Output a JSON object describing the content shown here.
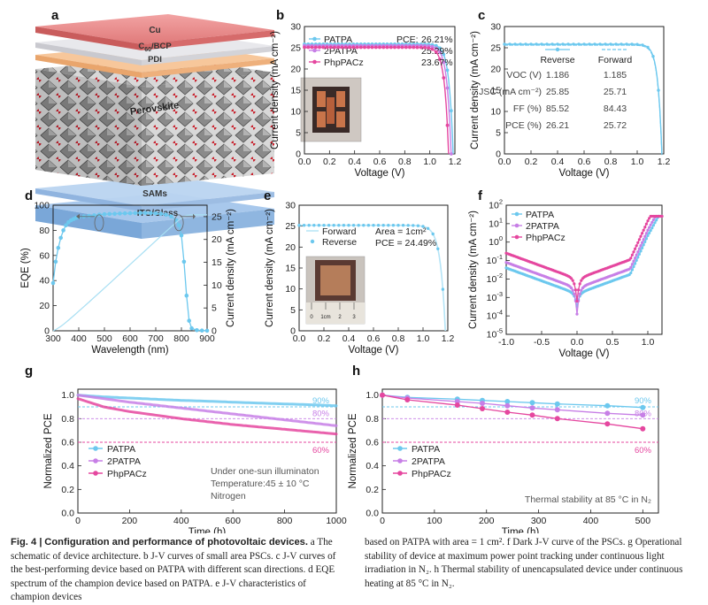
{
  "colors": {
    "blue": "#6cc8ee",
    "purple": "#c77fe6",
    "pink": "#e5479f",
    "grid": "#555555"
  },
  "panel_a": {
    "letter": "a",
    "layers": [
      "Cu",
      "C60/BCP",
      "PDI",
      "Perovskite",
      "SAMs",
      "ITO/Glass"
    ],
    "c60_base": "C",
    "c60_sub": "60",
    "c60_rest": "/BCP"
  },
  "chart_data": [
    {
      "id": "b",
      "type": "line",
      "letter": "b",
      "xlabel": "Voltage (V)",
      "ylabel": "Current density (mA cm⁻²)",
      "xlim": [
        0.0,
        1.2
      ],
      "ylim": [
        0,
        30
      ],
      "xticks": [
        0.0,
        0.2,
        0.4,
        0.6,
        0.8,
        1.0,
        1.2
      ],
      "yticks": [
        0,
        5,
        10,
        15,
        20,
        25,
        30
      ],
      "legend_header": "PCE:",
      "series": [
        {
          "name": "PATPA",
          "pce": "26.21%",
          "color": "#6cc8ee",
          "jsc": 25.85,
          "voc": 1.186
        },
        {
          "name": "2PATPA",
          "pce": "25.29%",
          "color": "#c77fe6",
          "jsc": 25.5,
          "voc": 1.17
        },
        {
          "name": "PhpPACz",
          "pce": "23.67%",
          "color": "#e5479f",
          "jsc": 25.1,
          "voc": 1.15
        }
      ],
      "inset": "photo of small-area devices"
    },
    {
      "id": "c",
      "type": "line",
      "letter": "c",
      "xlabel": "Voltage (V)",
      "ylabel": "Current density (mA cm⁻²)",
      "xlim": [
        0.0,
        1.2
      ],
      "ylim": [
        0,
        30
      ],
      "xticks": [
        0.0,
        0.2,
        0.4,
        0.6,
        0.8,
        1.0,
        1.2
      ],
      "yticks": [
        0,
        5,
        10,
        15,
        20,
        25,
        30
      ],
      "legend": [
        "Reverse",
        "Forward"
      ],
      "table": {
        "header": [
          "",
          "Reverse",
          "Forward"
        ],
        "rows": [
          [
            "VOC (V)",
            "1.186",
            "1.185"
          ],
          [
            "JSC (mA cm⁻²)",
            "25.85",
            "25.71"
          ],
          [
            "FF (%)",
            "85.52",
            "84.43"
          ],
          [
            "PCE (%)",
            "26.21",
            "25.72"
          ]
        ]
      }
    },
    {
      "id": "d",
      "type": "line",
      "letter": "d",
      "xlabel": "Wavelength (nm)",
      "ylabel": "EQE (%)",
      "y2label": "Current density (mA cm⁻²)",
      "xlim": [
        300,
        900
      ],
      "ylim": [
        0,
        100
      ],
      "y2lim": [
        0,
        27.5
      ],
      "xticks": [
        300,
        400,
        500,
        600,
        700,
        800,
        900
      ],
      "yticks": [
        0,
        20,
        40,
        60,
        80,
        100
      ],
      "y2ticks": [
        0,
        5,
        10,
        15,
        20,
        25
      ],
      "eqe": {
        "x": [
          300,
          310,
          320,
          330,
          340,
          350,
          360,
          370,
          380,
          390,
          400,
          420,
          440,
          460,
          480,
          500,
          520,
          540,
          560,
          580,
          600,
          620,
          640,
          660,
          680,
          700,
          720,
          740,
          760,
          780,
          790,
          800,
          810,
          820,
          830,
          840,
          860,
          880,
          900
        ],
        "y": [
          38,
          55,
          66,
          74,
          80,
          84,
          86.5,
          88,
          89,
          90,
          90.5,
          91,
          91.5,
          92,
          92.5,
          92.8,
          93,
          93.2,
          93.4,
          93.5,
          93.6,
          93.7,
          93.8,
          93.8,
          93.7,
          93.5,
          93.2,
          92.5,
          91,
          88,
          84,
          76,
          55,
          28,
          8,
          2,
          0.5,
          0.2,
          0.1
        ]
      },
      "integrated_jsc_end": 25.4
    },
    {
      "id": "e",
      "type": "line",
      "letter": "e",
      "xlabel": "Voltage (V)",
      "ylabel": "Current density (mA cm⁻²)",
      "xlim": [
        0.0,
        1.2
      ],
      "ylim": [
        0,
        30
      ],
      "xticks": [
        0.0,
        0.2,
        0.4,
        0.6,
        0.8,
        1.0,
        1.2
      ],
      "yticks": [
        0,
        5,
        10,
        15,
        20,
        25,
        30
      ],
      "legend": [
        "Forward",
        "Reverse"
      ],
      "annotations": [
        "Area = 1cm²",
        "PCE = 24.49%"
      ],
      "jsc": 25.2,
      "voc": 1.18,
      "inset": "photo of 1 cm² device on ruler",
      "ruler_labels": [
        "0",
        "1cm",
        "2",
        "3"
      ]
    },
    {
      "id": "f",
      "type": "line",
      "letter": "f",
      "yscale": "log",
      "xlabel": "Voltage (V)",
      "ylabel": "Current density (mA cm⁻²)",
      "xlim": [
        -1.0,
        1.2
      ],
      "ylim_exp": [
        -5,
        2
      ],
      "xticks": [
        -1.0,
        -0.5,
        0.0,
        0.5,
        1.0
      ],
      "ytick_exps": [
        -5,
        -4,
        -3,
        -2,
        -1,
        0,
        1,
        2
      ],
      "series": [
        {
          "name": "PATPA",
          "color": "#6cc8ee",
          "leak_exp": -1.4,
          "min_exp": -3.5
        },
        {
          "name": "2PATPA",
          "color": "#c77fe6",
          "leak_exp": -1.1,
          "min_exp": -3.9
        },
        {
          "name": "PhpPACz",
          "color": "#e5479f",
          "leak_exp": -0.6,
          "min_exp": -3.2
        }
      ]
    },
    {
      "id": "g",
      "type": "line",
      "letter": "g",
      "xlabel": "Time (h)",
      "ylabel": "Normalized PCE",
      "xlim": [
        0,
        1000
      ],
      "ylim": [
        0,
        1.05
      ],
      "xticks": [
        0,
        200,
        400,
        600,
        800,
        1000
      ],
      "yticks": [
        0.0,
        0.2,
        0.4,
        0.6,
        0.8,
        1.0
      ],
      "reference_lines": [
        {
          "y": 0.9,
          "label": "90%",
          "color": "#6cc8ee"
        },
        {
          "y": 0.8,
          "label": "80%",
          "color": "#c77fe6"
        },
        {
          "y": 0.6,
          "label": "60%",
          "color": "#e5479f"
        }
      ],
      "series": [
        {
          "name": "PATPA",
          "color": "#6cc8ee",
          "x": [
            0,
            100,
            200,
            300,
            400,
            500,
            600,
            700,
            800,
            900,
            1000
          ],
          "y": [
            1.0,
            0.985,
            0.975,
            0.965,
            0.955,
            0.948,
            0.94,
            0.932,
            0.925,
            0.918,
            0.91
          ]
        },
        {
          "name": "2PATPA",
          "color": "#c77fe6",
          "x": [
            0,
            100,
            200,
            300,
            400,
            500,
            600,
            700,
            800,
            900,
            1000
          ],
          "y": [
            1.0,
            0.97,
            0.94,
            0.915,
            0.89,
            0.865,
            0.84,
            0.815,
            0.79,
            0.765,
            0.74
          ]
        },
        {
          "name": "PhpPACz",
          "color": "#e5479f",
          "x": [
            0,
            100,
            200,
            300,
            400,
            500,
            600,
            700,
            800,
            900,
            1000
          ],
          "y": [
            0.97,
            0.9,
            0.86,
            0.83,
            0.8,
            0.775,
            0.75,
            0.73,
            0.71,
            0.69,
            0.67
          ]
        }
      ],
      "notes": [
        "Under one-sun illuminaton",
        "Temperature:45 ± 10 °C",
        "Nitrogen"
      ]
    },
    {
      "id": "h",
      "type": "line",
      "letter": "h",
      "xlabel": "Time (h)",
      "ylabel": "Normalized PCE",
      "xlim": [
        0,
        530
      ],
      "ylim": [
        0,
        1.05
      ],
      "xticks": [
        0,
        100,
        200,
        300,
        400,
        500
      ],
      "yticks": [
        0.0,
        0.2,
        0.4,
        0.6,
        0.8,
        1.0
      ],
      "reference_lines": [
        {
          "y": 0.9,
          "label": "90%",
          "color": "#6cc8ee"
        },
        {
          "y": 0.8,
          "label": "80%",
          "color": "#c77fe6"
        },
        {
          "y": 0.6,
          "label": "60%",
          "color": "#e5479f"
        }
      ],
      "series": [
        {
          "name": "PATPA",
          "color": "#6cc8ee",
          "x": [
            0,
            48,
            144,
            192,
            240,
            288,
            336,
            432,
            500
          ],
          "y": [
            1.0,
            0.98,
            0.965,
            0.955,
            0.945,
            0.935,
            0.925,
            0.91,
            0.895
          ]
        },
        {
          "name": "2PATPA",
          "color": "#c77fe6",
          "x": [
            0,
            48,
            144,
            192,
            240,
            288,
            336,
            432,
            500
          ],
          "y": [
            1.0,
            0.975,
            0.945,
            0.93,
            0.91,
            0.89,
            0.875,
            0.845,
            0.83
          ]
        },
        {
          "name": "PhpPACz",
          "color": "#e5479f",
          "x": [
            0,
            48,
            144,
            192,
            240,
            288,
            336,
            432,
            500
          ],
          "y": [
            1.0,
            0.96,
            0.915,
            0.885,
            0.855,
            0.83,
            0.8,
            0.755,
            0.715
          ]
        }
      ],
      "note": "Thermal stability at 85 °C in N₂"
    }
  ],
  "caption": {
    "fig_label": "Fig. 4 |",
    "fig_title": "Configuration and performance of photovoltaic devices.",
    "left_text": "a The schematic of device architecture. b J-V curves of small area PSCs. c J-V curves of the best-performing device based on PATPA with different scan directions. d EQE spectrum of the champion device based on PATPA. e J-V characteristics of champion devices",
    "right_text": "based on PATPA with area = 1 cm². f Dark J-V curve of the PSCs. g Operational stability of device at maximum power point tracking under continuous light irradiation in N₂. h Thermal stability of unencapsulated device under continuous heating at 85 °C in N₂."
  }
}
